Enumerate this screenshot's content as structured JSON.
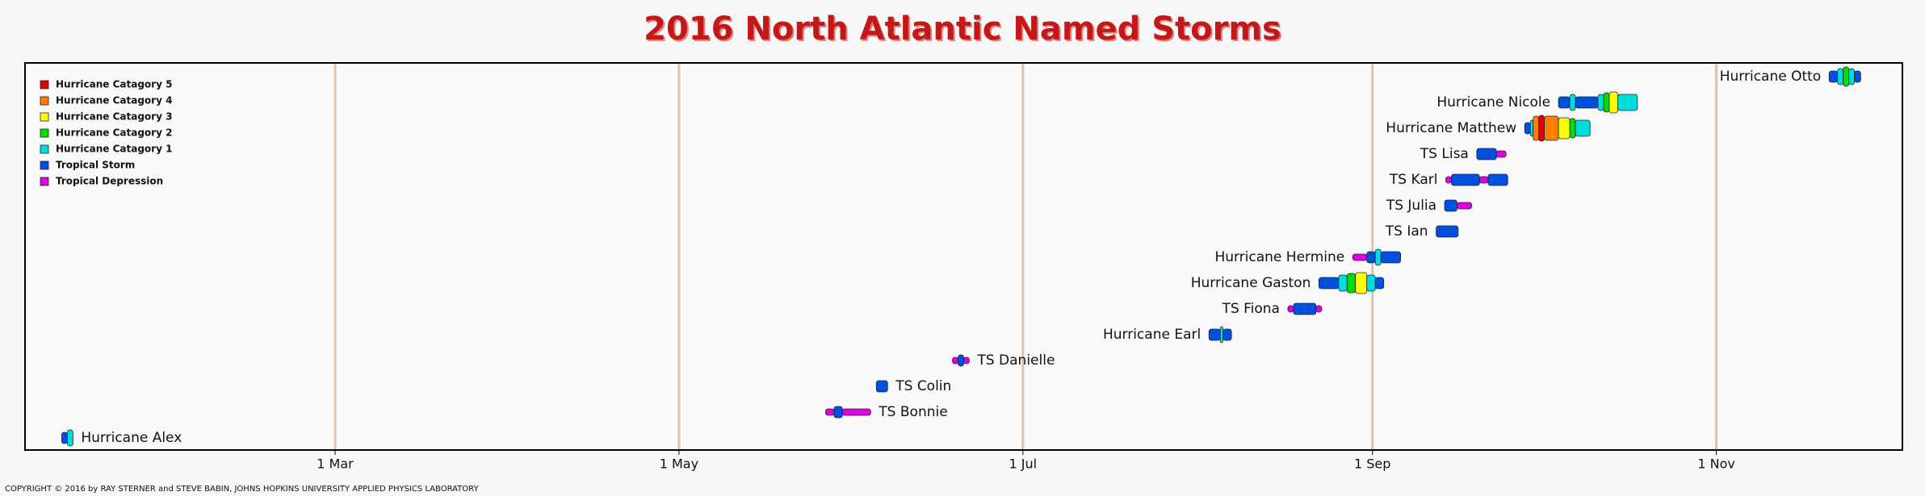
{
  "chart_data": {
    "type": "timeline",
    "title": "2016 North Atlantic Named Storms",
    "footer": "COPYRIGHT © 2016 by RAY STERNER and STEVE BABIN, JOHNS HOPKINS UNIVERSITY APPLIED PHYSICS LABORATORY",
    "xlim": [
      5,
      338
    ],
    "xticks": [
      {
        "value": 60,
        "label": "1 Mar"
      },
      {
        "value": 121,
        "label": "1 May"
      },
      {
        "value": 182,
        "label": "1 Jul"
      },
      {
        "value": 244,
        "label": "1 Sep"
      },
      {
        "value": 305,
        "label": "1 Nov"
      }
    ],
    "legend": "upper left",
    "levels": [
      {
        "name": "Hurricane Catagory 5",
        "color": "#e00000"
      },
      {
        "name": "Hurricane Catagory 4",
        "color": "#ff8000"
      },
      {
        "name": "Hurricane Catagory 3",
        "color": "#ffff00"
      },
      {
        "name": "Hurricane Catagory 2",
        "color": "#00dd00"
      },
      {
        "name": "Hurricane Catagory 1",
        "color": "#00dddd"
      },
      {
        "name": "Tropical Storm",
        "color": "#0050e0"
      },
      {
        "name": "Tropical Depression",
        "color": "#e000e0"
      }
    ],
    "storms": [
      {
        "name": "Hurricane Alex",
        "label_side": "right",
        "segments": [
          {
            "level": 5,
            "start": 11.5,
            "end": 12.5
          },
          {
            "level": 4,
            "start": 12.5,
            "end": 13.5
          }
        ]
      },
      {
        "name": "TS Bonnie",
        "label_side": "right",
        "segments": [
          {
            "level": 6,
            "start": 147,
            "end": 148.5
          },
          {
            "level": 5,
            "start": 148.5,
            "end": 150
          },
          {
            "level": 6,
            "start": 150,
            "end": 155
          }
        ]
      },
      {
        "name": "TS Colin",
        "label_side": "right",
        "segments": [
          {
            "level": 5,
            "start": 156,
            "end": 158
          }
        ]
      },
      {
        "name": "TS Danielle",
        "label_side": "right",
        "segments": [
          {
            "level": 6,
            "start": 169.5,
            "end": 170.5
          },
          {
            "level": 5,
            "start": 170.5,
            "end": 171.5
          },
          {
            "level": 6,
            "start": 171.5,
            "end": 172.5
          }
        ]
      },
      {
        "name": "Hurricane Earl",
        "label_side": "left",
        "segments": [
          {
            "level": 5,
            "start": 215,
            "end": 217
          },
          {
            "level": 4,
            "start": 217,
            "end": 217.5
          },
          {
            "level": 5,
            "start": 217.5,
            "end": 219
          }
        ]
      },
      {
        "name": "TS Fiona",
        "label_side": "left",
        "segments": [
          {
            "level": 6,
            "start": 229,
            "end": 230
          },
          {
            "level": 5,
            "start": 230,
            "end": 234
          },
          {
            "level": 6,
            "start": 234,
            "end": 235
          }
        ]
      },
      {
        "name": "Hurricane Gaston",
        "label_side": "left",
        "segments": [
          {
            "level": 5,
            "start": 234.5,
            "end": 238
          },
          {
            "level": 4,
            "start": 238,
            "end": 239.5
          },
          {
            "level": 3,
            "start": 239.5,
            "end": 241
          },
          {
            "level": 2,
            "start": 241,
            "end": 243
          },
          {
            "level": 4,
            "start": 243,
            "end": 244.5
          },
          {
            "level": 5,
            "start": 244.5,
            "end": 246
          }
        ]
      },
      {
        "name": "Hurricane Hermine",
        "label_side": "left",
        "segments": [
          {
            "level": 6,
            "start": 240.5,
            "end": 243
          },
          {
            "level": 5,
            "start": 243,
            "end": 244.5
          },
          {
            "level": 4,
            "start": 244.5,
            "end": 245.5
          },
          {
            "level": 5,
            "start": 245.5,
            "end": 249
          }
        ]
      },
      {
        "name": "TS Ian",
        "label_side": "left",
        "segments": [
          {
            "level": 5,
            "start": 255.3,
            "end": 259.2
          }
        ]
      },
      {
        "name": "TS Julia",
        "label_side": "left",
        "segments": [
          {
            "level": 5,
            "start": 256.8,
            "end": 259
          },
          {
            "level": 6,
            "start": 259,
            "end": 261.6
          }
        ]
      },
      {
        "name": "TS Karl",
        "label_side": "left",
        "segments": [
          {
            "level": 6,
            "start": 257,
            "end": 258
          },
          {
            "level": 5,
            "start": 258,
            "end": 263
          },
          {
            "level": 6,
            "start": 263,
            "end": 264.5
          },
          {
            "level": 5,
            "start": 264.5,
            "end": 268
          }
        ]
      },
      {
        "name": "TS Lisa",
        "label_side": "left",
        "segments": [
          {
            "level": 5,
            "start": 262.5,
            "end": 266
          },
          {
            "level": 6,
            "start": 266,
            "end": 267.7
          }
        ]
      },
      {
        "name": "Hurricane Matthew",
        "label_side": "left",
        "segments": [
          {
            "level": 5,
            "start": 271,
            "end": 272
          },
          {
            "level": 4,
            "start": 272,
            "end": 272.5
          },
          {
            "level": 1,
            "start": 272.5,
            "end": 273.5
          },
          {
            "level": 0,
            "start": 273.5,
            "end": 274.5
          },
          {
            "level": 1,
            "start": 274.5,
            "end": 277
          },
          {
            "level": 2,
            "start": 277,
            "end": 279
          },
          {
            "level": 3,
            "start": 279,
            "end": 280
          },
          {
            "level": 4,
            "start": 280,
            "end": 282.6
          }
        ]
      },
      {
        "name": "Hurricane Nicole",
        "label_side": "left",
        "segments": [
          {
            "level": 5,
            "start": 277,
            "end": 279
          },
          {
            "level": 4,
            "start": 279,
            "end": 280
          },
          {
            "level": 5,
            "start": 280,
            "end": 284
          },
          {
            "level": 4,
            "start": 284,
            "end": 285
          },
          {
            "level": 3,
            "start": 285,
            "end": 286
          },
          {
            "level": 2,
            "start": 286,
            "end": 287.5
          },
          {
            "level": 4,
            "start": 287.5,
            "end": 291
          }
        ]
      },
      {
        "name": "Hurricane Otto",
        "label_side": "left",
        "segments": [
          {
            "level": 5,
            "start": 325,
            "end": 326.5
          },
          {
            "level": 4,
            "start": 326.5,
            "end": 327.5
          },
          {
            "level": 3,
            "start": 327.5,
            "end": 328.5
          },
          {
            "level": 4,
            "start": 328.5,
            "end": 329.5
          },
          {
            "level": 5,
            "start": 329.5,
            "end": 330.6
          }
        ]
      }
    ]
  }
}
